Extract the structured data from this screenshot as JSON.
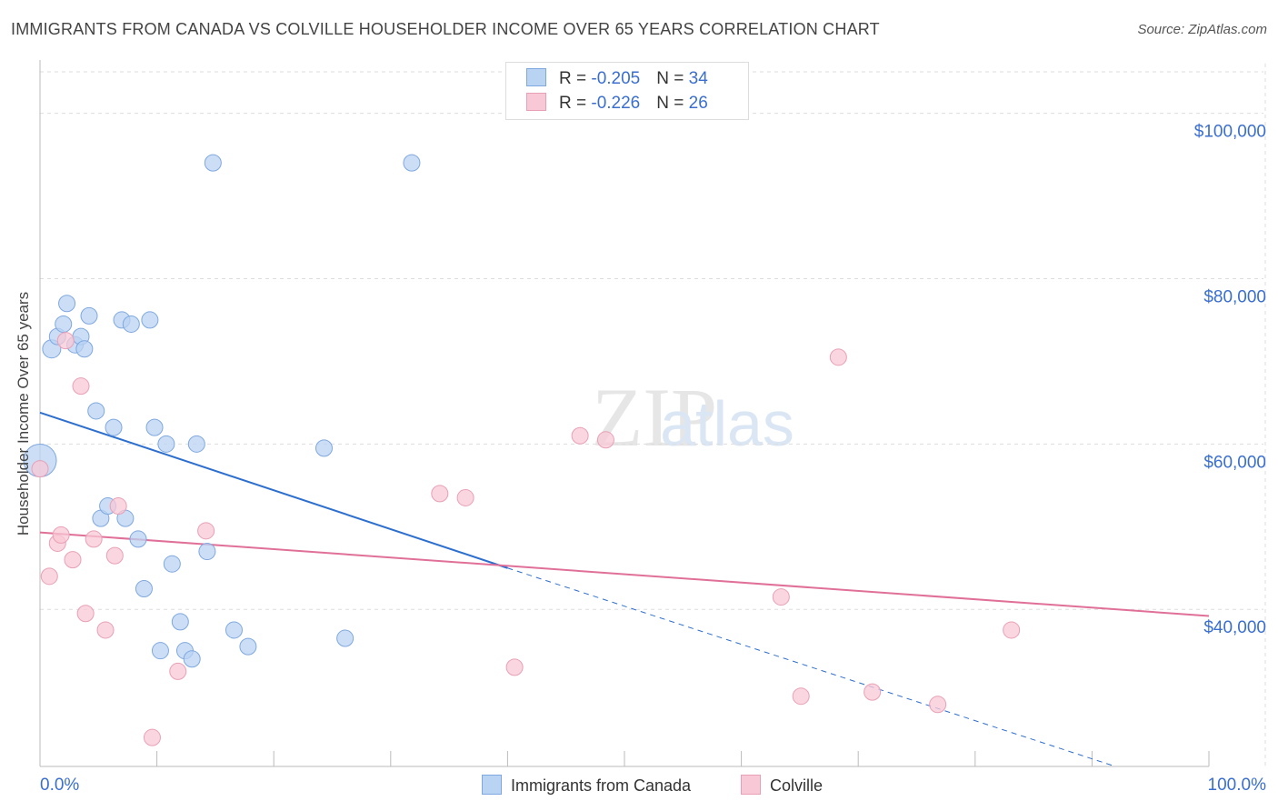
{
  "header": {
    "title": "IMMIGRANTS FROM CANADA VS COLVILLE HOUSEHOLDER INCOME OVER 65 YEARS CORRELATION CHART",
    "source": "Source: ZipAtlas.com"
  },
  "legend": {
    "rows": [
      {
        "r_label": "R = ",
        "r_value": "-0.205",
        "n_label": "N = ",
        "n_value": "34"
      },
      {
        "r_label": "R = ",
        "r_value": "-0.226",
        "n_label": "N = ",
        "n_value": "26"
      }
    ]
  },
  "colors": {
    "blue_fill": "#b9d3f3",
    "blue_stroke": "#7fa8e0",
    "blue_line": "#2d6fcf",
    "pink_fill": "#f8c8d6",
    "pink_stroke": "#e9a0b6",
    "pink_line": "#e07098",
    "tick_label": "#3a6fd0",
    "grid": "#dddddd"
  },
  "chart_data": {
    "type": "scatter",
    "title": "IMMIGRANTS FROM CANADA VS COLVILLE HOUSEHOLDER INCOME OVER 65 YEARS CORRELATION CHART",
    "xlabel": "",
    "ylabel": "Householder Income Over 65 years",
    "xlim": [
      0,
      100
    ],
    "ylim": [
      21000,
      106000
    ],
    "x_tick_labels": [
      "0.0%",
      "100.0%"
    ],
    "y_ticks": [
      40000,
      60000,
      80000,
      100000
    ],
    "y_tick_labels": [
      "$40,000",
      "$60,000",
      "$80,000",
      "$100,000"
    ],
    "grid": true,
    "legend_position": "top-center",
    "watermark": "ZIPatlas",
    "series": [
      {
        "name": "Immigrants from Canada",
        "trend": {
          "x0": 0,
          "y0": 63800,
          "x1": 40,
          "y1": 45000,
          "dash_to_x": 92,
          "dash_to_y": 21000
        },
        "points": [
          [
            0,
            58000,
            18
          ],
          [
            1,
            71500,
            10
          ],
          [
            1.5,
            73000,
            9
          ],
          [
            2,
            74500,
            9
          ],
          [
            2.3,
            77000,
            9
          ],
          [
            3,
            72000,
            9
          ],
          [
            3.5,
            73000,
            9
          ],
          [
            3.8,
            71500,
            9
          ],
          [
            4.2,
            75500,
            9
          ],
          [
            4.8,
            64000,
            9
          ],
          [
            5.2,
            51000,
            9
          ],
          [
            5.8,
            52500,
            9
          ],
          [
            6.3,
            62000,
            9
          ],
          [
            7,
            75000,
            9
          ],
          [
            7.3,
            51000,
            9
          ],
          [
            7.8,
            74500,
            9
          ],
          [
            8.4,
            48500,
            9
          ],
          [
            8.9,
            42500,
            9
          ],
          [
            9.4,
            75000,
            9
          ],
          [
            9.8,
            62000,
            9
          ],
          [
            10.3,
            35000,
            9
          ],
          [
            10.8,
            60000,
            9
          ],
          [
            11.3,
            45500,
            9
          ],
          [
            12,
            38500,
            9
          ],
          [
            12.4,
            35000,
            9
          ],
          [
            13,
            34000,
            9
          ],
          [
            13.4,
            60000,
            9
          ],
          [
            14.3,
            47000,
            9
          ],
          [
            14.8,
            94000,
            9
          ],
          [
            16.6,
            37500,
            9
          ],
          [
            17.8,
            35500,
            9
          ],
          [
            24.3,
            59500,
            9
          ],
          [
            26.1,
            36500,
            9
          ],
          [
            31.8,
            94000,
            9
          ]
        ]
      },
      {
        "name": "Colville",
        "trend": {
          "x0": 0,
          "y0": 49300,
          "x1": 100,
          "y1": 39200
        },
        "points": [
          [
            0,
            57000,
            9
          ],
          [
            0.8,
            44000,
            9
          ],
          [
            1.5,
            48000,
            9
          ],
          [
            1.8,
            49000,
            9
          ],
          [
            2.2,
            72500,
            9
          ],
          [
            2.8,
            46000,
            9
          ],
          [
            3.5,
            67000,
            9
          ],
          [
            3.9,
            39500,
            9
          ],
          [
            4.6,
            48500,
            9
          ],
          [
            5.6,
            37500,
            9
          ],
          [
            6.4,
            46500,
            9
          ],
          [
            6.7,
            52500,
            9
          ],
          [
            9.6,
            24500,
            9
          ],
          [
            11.8,
            32500,
            9
          ],
          [
            14.2,
            49500,
            9
          ],
          [
            34.2,
            54000,
            9
          ],
          [
            36.4,
            53500,
            9
          ],
          [
            40.6,
            33000,
            9
          ],
          [
            46.2,
            61000,
            9
          ],
          [
            48.4,
            60500,
            9
          ],
          [
            63.4,
            41500,
            9
          ],
          [
            65.1,
            29500,
            9
          ],
          [
            68.3,
            70500,
            9
          ],
          [
            71.2,
            30000,
            9
          ],
          [
            76.8,
            28500,
            9
          ],
          [
            83.1,
            37500,
            9
          ]
        ]
      }
    ]
  }
}
